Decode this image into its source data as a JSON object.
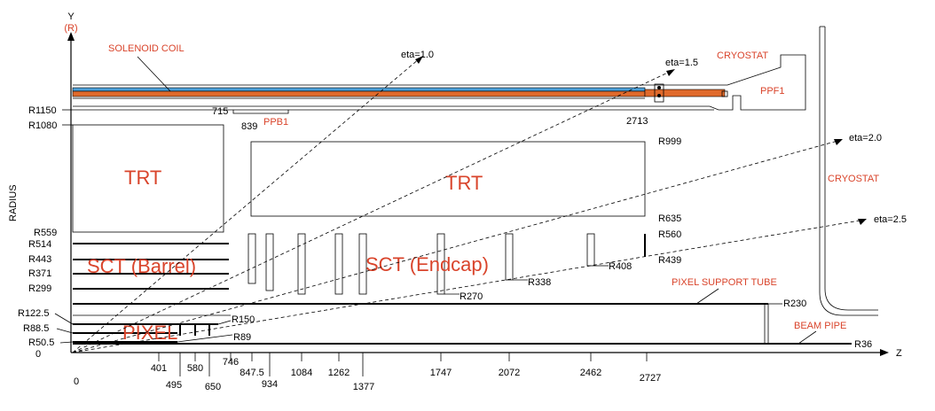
{
  "axes": {
    "y_label": "Y",
    "y_sub": "(R)",
    "z_label": "Z",
    "side_label": "RADIUS"
  },
  "components": {
    "solenoid": "SOLENOID COIL",
    "cryostat_top": "CRYOSTAT",
    "cryostat_side": "CRYOSTAT",
    "ppf1": "PPF1",
    "ppb1": "PPB1",
    "trt_barrel": "TRT",
    "trt_endcap": "TRT",
    "sct_barrel": "SCT (Barrel)",
    "sct_endcap": "SCT (Endcap)",
    "pixel": "PIXEL",
    "pixel_support_tube": "PIXEL SUPPORT TUBE",
    "beam_pipe": "BEAM PIPE"
  },
  "eta_lines": [
    "eta=1.0",
    "eta=1.5",
    "eta=2.0",
    "eta=2.5"
  ],
  "radius_labels_left": [
    "R1150",
    "R1080",
    "R559",
    "R514",
    "R443",
    "R371",
    "R299",
    "R122.5",
    "R88.5",
    "R50.5",
    "0"
  ],
  "radius_labels_inner": {
    "r999": "R999",
    "r635": "R635",
    "r560": "R560",
    "r439": "R439",
    "r408": "R408",
    "r338": "R338",
    "r270": "R270",
    "r150": "R150",
    "r89": "R89",
    "r230": "R230",
    "r36": "R36"
  },
  "z_labels_upper": {
    "z715": "715",
    "z839": "839",
    "z2713": "2713"
  },
  "z_ticks_row1": [
    "401",
    "580",
    "746",
    "847.5",
    "1084",
    "1262",
    "1747",
    "2072",
    "2462",
    "2727"
  ],
  "z_ticks_row2": [
    "0",
    "495",
    "650",
    "934",
    "1377"
  ]
}
